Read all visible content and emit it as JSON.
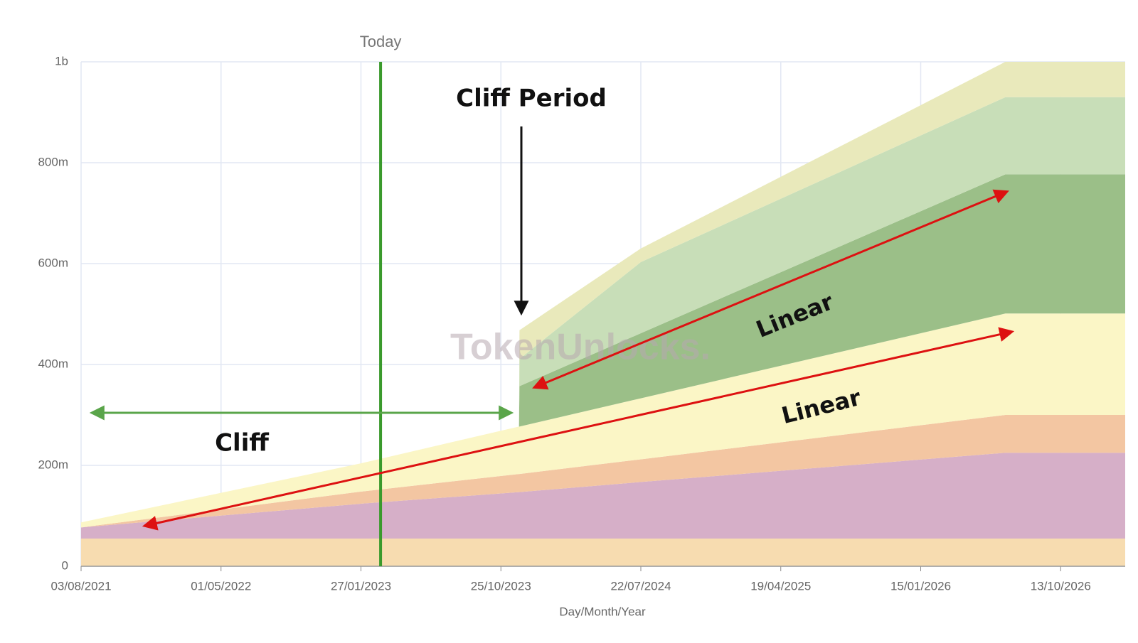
{
  "chart_data": {
    "type": "stacked-area",
    "x_label": "Day/Month/Year",
    "x": [
      "03/08/2021",
      "27/01/2023",
      "29/11/2023",
      "30/11/2023",
      "22/07/2024",
      "28/06/2026",
      "15/02/2027"
    ],
    "xlim": [
      "03/08/2021",
      "15/02/2027"
    ],
    "xticks": [
      "03/08/2021",
      "01/05/2022",
      "27/01/2023",
      "25/10/2023",
      "22/07/2024",
      "19/04/2025",
      "15/01/2026",
      "13/10/2026"
    ],
    "ylim": [
      0,
      1000
    ],
    "yticks": [
      0,
      {
        "value": 200,
        "label": "200m"
      },
      {
        "value": 400,
        "label": "400m"
      },
      {
        "value": 600,
        "label": "600m"
      },
      {
        "value": 800,
        "label": "800m"
      },
      {
        "value": 1000,
        "label": "1b"
      }
    ],
    "grid": true,
    "series": [
      {
        "color": "#f7dcb0",
        "values": [
          55,
          55,
          55,
          55,
          55,
          55,
          55
        ]
      },
      {
        "color": "#d6afc8",
        "values": [
          22,
          69,
          92,
          92,
          112,
          170,
          170
        ]
      },
      {
        "color": "#f3c6a2",
        "values": [
          0,
          24,
          36,
          36,
          45,
          75,
          75
        ]
      },
      {
        "color": "#fbf6c6",
        "values": [
          10,
          56,
          94,
          94,
          121,
          201,
          201
        ]
      },
      {
        "color": "#9bbf88",
        "values": [
          0,
          0,
          0,
          80,
          129,
          276,
          276
        ]
      },
      {
        "color": "#c8deb8",
        "values": [
          0,
          0,
          0,
          54,
          141,
          153,
          153
        ]
      },
      {
        "color": "#e9e9bb",
        "values": [
          0,
          0,
          0,
          57,
          27,
          70,
          70
        ]
      }
    ],
    "today": {
      "label": "Today",
      "x": "06/03/2023"
    },
    "annotations": {
      "cliff_period": "Cliff Period",
      "cliff": "Cliff",
      "linear_upper": "Linear",
      "linear_lower": "Linear"
    },
    "watermark": "TokenUnlocks."
  }
}
